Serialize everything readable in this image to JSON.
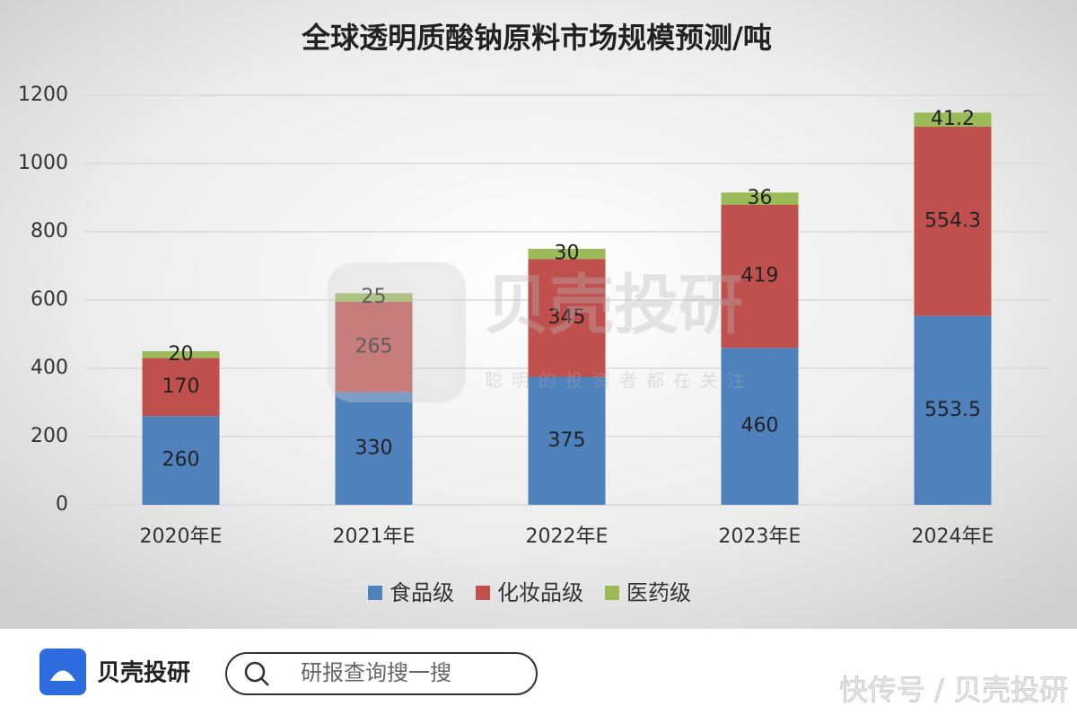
{
  "chart_data": {
    "type": "stacked_bar",
    "title": "全球透明质酸钠原料市场规模预测/吨",
    "categories": [
      "2020年E",
      "2021年E",
      "2022年E",
      "2023年E",
      "2024年E"
    ],
    "series": [
      {
        "name": "食品级",
        "color": "#4f81bd",
        "values": [
          260,
          330,
          375,
          460,
          553.5
        ]
      },
      {
        "name": "化妆品级",
        "color": "#c0504d",
        "values": [
          170,
          265,
          345,
          419,
          554.3
        ]
      },
      {
        "name": "医药级",
        "color": "#9bbb59",
        "values": [
          20,
          25,
          30,
          36,
          41.2
        ]
      }
    ],
    "ylim": [
      0,
      1200
    ],
    "yticks": [
      0,
      200,
      400,
      600,
      800,
      1000,
      1200
    ],
    "grid": true,
    "legend": "bottom"
  },
  "watermark": {
    "brand": "贝壳投研",
    "slogan": "聪明的投资者都在关注"
  },
  "footer": {
    "brand": "贝壳投研",
    "search_placeholder": "研报查询搜一搜",
    "credit": "快传号 / 贝壳投研"
  }
}
